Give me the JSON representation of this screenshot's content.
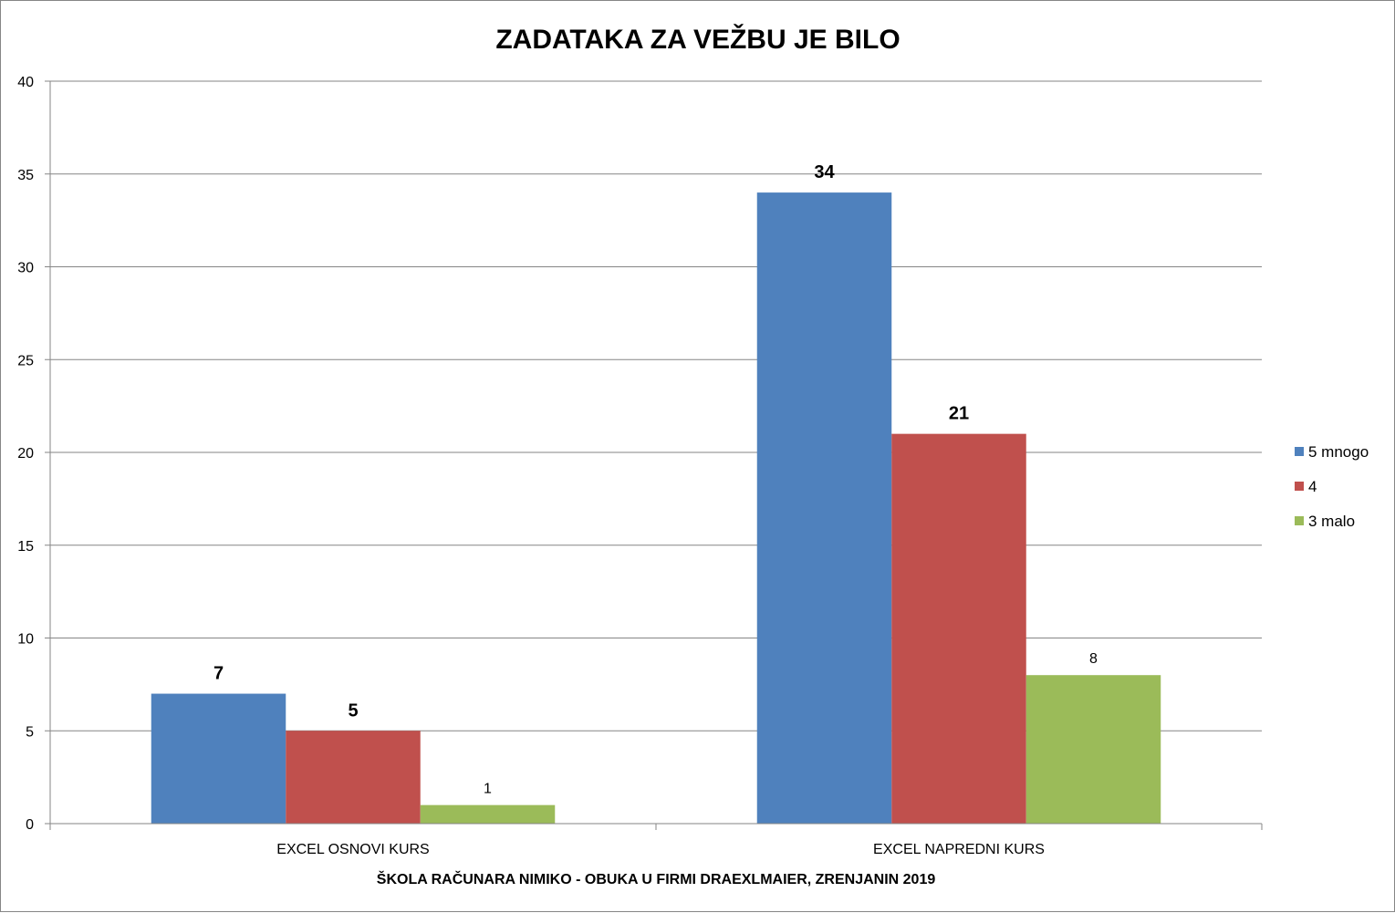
{
  "chart_data": {
    "type": "bar",
    "title": "ZADATAKA ZA VEŽBU JE BILO",
    "xlabel": "ŠKOLA RAČUNARA NIMIKO - OBUKA U FIRMI DRAEXLMAIER, ZRENJANIN 2019",
    "ylabel": "",
    "categories": [
      "EXCEL OSNOVI KURS",
      "EXCEL NAPREDNI KURS"
    ],
    "series": [
      {
        "name": "5 mnogo",
        "values": [
          7,
          34
        ],
        "color": "#4F81BD",
        "label_bold": true
      },
      {
        "name": "4",
        "values": [
          5,
          21
        ],
        "color": "#C0504D",
        "label_bold": true
      },
      {
        "name": "3 malo",
        "values": [
          1,
          8
        ],
        "color": "#9BBB59",
        "label_bold": false
      }
    ],
    "ylim": [
      0,
      40
    ],
    "yticks": [
      "0",
      "5",
      "10",
      "15",
      "20",
      "25",
      "30",
      "35",
      "40"
    ],
    "grid": true,
    "legend_position": "right",
    "data_labels": true
  }
}
